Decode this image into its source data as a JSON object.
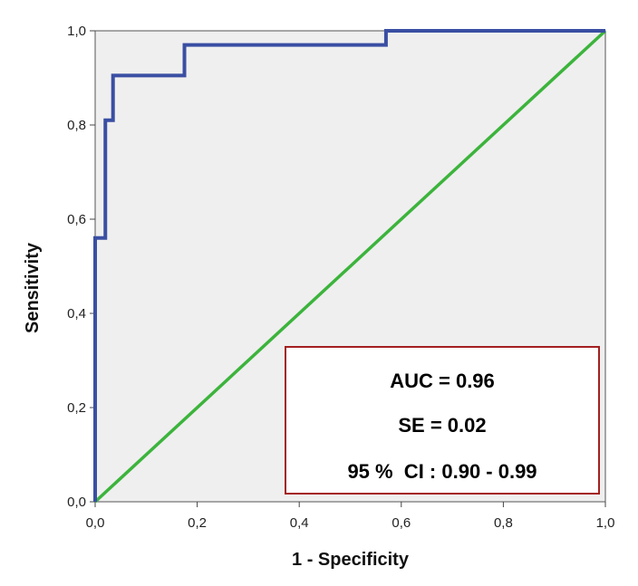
{
  "chart_data": {
    "type": "line",
    "xlabel": "1 - Specificity",
    "ylabel": "Sensitivity",
    "xlim": [
      0,
      1
    ],
    "ylim": [
      0,
      1
    ],
    "x_ticks": [
      "0,0",
      "0,2",
      "0,4",
      "0,6",
      "0,8",
      "1,0"
    ],
    "y_ticks": [
      "0,0",
      "0,2",
      "0,4",
      "0,6",
      "0,8",
      "1,0"
    ],
    "grid": false,
    "series": [
      {
        "role": "roc-curve",
        "color": "#3a4fa3",
        "x": [
          0,
          0,
          0.02,
          0.02,
          0.035,
          0.035,
          0.175,
          0.175,
          0.57,
          0.57,
          1.0
        ],
        "y": [
          0,
          0.56,
          0.56,
          0.81,
          0.81,
          0.905,
          0.905,
          0.97,
          0.97,
          1.0,
          1.0
        ]
      },
      {
        "role": "reference-diagonal",
        "color": "#3cb43c",
        "x": [
          0,
          1
        ],
        "y": [
          0,
          1
        ]
      }
    ],
    "annotation": {
      "lines": [
        "AUC = 0.96",
        "SE = 0.02",
        "95 %  CI : 0.90 - 0.99"
      ],
      "border_color": "#a31f1f",
      "placement": "bottom-right"
    },
    "plot_background": "#efefef"
  }
}
